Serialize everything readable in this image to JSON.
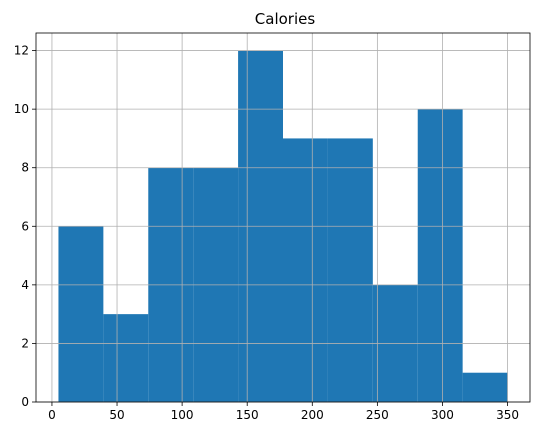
{
  "chart_data": {
    "type": "bar",
    "subtype": "histogram",
    "title": "Calories",
    "xlabel": "",
    "ylabel": "",
    "bin_edges": [
      5,
      39.5,
      74,
      108.5,
      143,
      177.5,
      212,
      246.5,
      281,
      315.5,
      350
    ],
    "values": [
      6,
      3,
      8,
      8,
      12,
      9,
      9,
      4,
      10,
      1
    ],
    "xlim": [
      -12.25,
      367.25
    ],
    "ylim": [
      0,
      12.6
    ],
    "xticks": [
      0,
      50,
      100,
      150,
      200,
      250,
      300,
      350
    ],
    "yticks": [
      0,
      2,
      4,
      6,
      8,
      10,
      12
    ],
    "grid": true,
    "bar_color": "#1f77b4",
    "grid_color": "#b0b0b0",
    "legend": "none"
  }
}
